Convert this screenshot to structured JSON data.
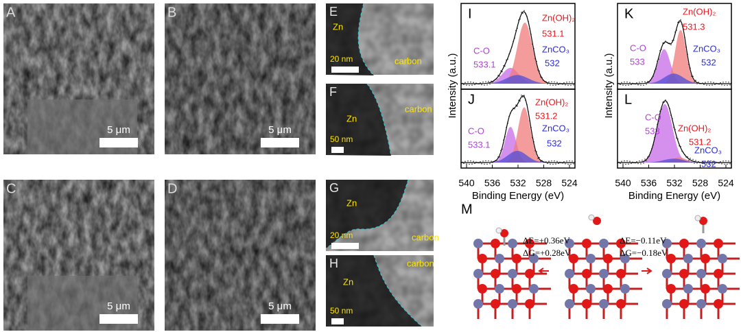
{
  "sem_panels": [
    {
      "label": "A",
      "scale_bar": "5 μm"
    },
    {
      "label": "B",
      "scale_bar": "5 μm"
    },
    {
      "label": "C",
      "scale_bar": "5 μm"
    },
    {
      "label": "D",
      "scale_bar": "5 μm"
    }
  ],
  "tem_panels": [
    {
      "label": "E",
      "zn": "Zn",
      "scale_bar": "20 nm",
      "carbon": "carbon"
    },
    {
      "label": "F",
      "zn": "Zn",
      "scale_bar": "50 nm",
      "carbon": "carbon"
    },
    {
      "label": "G",
      "zn": "Zn",
      "scale_bar": "20 nm",
      "carbon": "carbon"
    },
    {
      "label": "H",
      "zn": "Zn",
      "scale_bar": "50 nm",
      "carbon": "carbon"
    }
  ],
  "xps": {
    "y_label": "Intensity (a.u.)",
    "x_label": "Binding Energy (eV)",
    "x_ticks": [
      "540",
      "536",
      "532",
      "528",
      "524"
    ],
    "panels": [
      {
        "label": "I",
        "zn_oh": "Zn(OH)₂",
        "zn_oh_peak": "531.1",
        "co": "C-O",
        "co_peak": "533.1",
        "znco3": "ZnCO₃",
        "znco3_peak": "532"
      },
      {
        "label": "J",
        "zn_oh": "Zn(OH)₂",
        "zn_oh_peak": "531.2",
        "co": "C-O",
        "co_peak": "533.1",
        "znco3": "ZnCO₃",
        "znco3_peak": "532"
      },
      {
        "label": "K",
        "zn_oh": "Zn(OH)₂",
        "zn_oh_peak": "531.3",
        "co": "C-O",
        "co_peak": "533",
        "znco3": "ZnCO₃",
        "znco3_peak": "532"
      },
      {
        "label": "L",
        "zn_oh": "Zn(OH)₂",
        "zn_oh_peak": "531.2",
        "co": "C-O",
        "co_peak": "533",
        "znco3": "ZnCO₃",
        "znco3_peak": "532"
      }
    ]
  },
  "dft": {
    "label": "M",
    "left_de": "ΔE=+0.36eV",
    "left_dg": "ΔG=+0.28eV",
    "right_de": "ΔE=−0.11eV",
    "right_dg": "ΔG=−0.18eV"
  }
}
